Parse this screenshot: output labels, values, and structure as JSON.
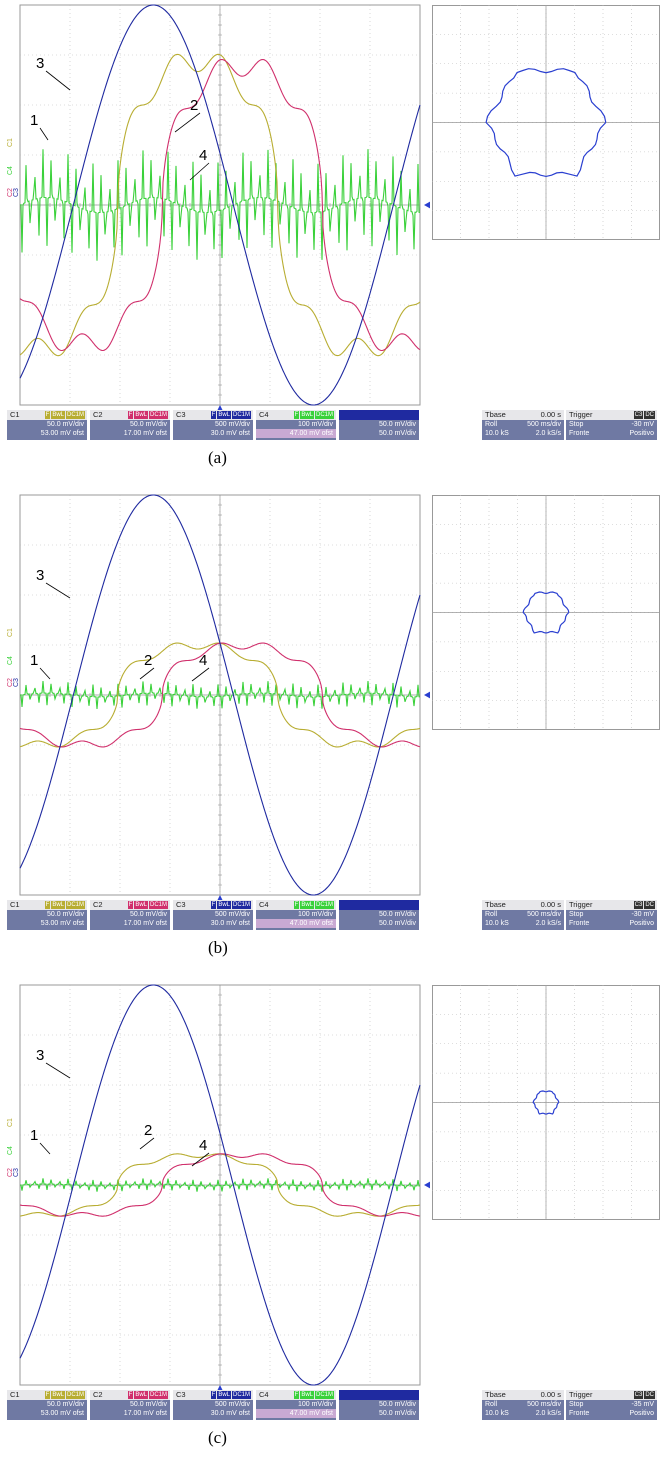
{
  "chart_data": [
    {
      "type": "line",
      "caption": "(a)",
      "markers": {
        "ch1": "C1",
        "ch4": "C4",
        "ch2": "C2",
        "ch3": "C3"
      },
      "series": [
        {
          "name": "1",
          "color": "#b8ad32",
          "amplitude_div": 2.9,
          "shape": "flat-top",
          "phase_deg": 250
        },
        {
          "name": "2",
          "color": "#d0306c",
          "amplitude_div": 2.8,
          "shape": "flat-top",
          "phase_deg": 200
        },
        {
          "name": "3",
          "color": "#1f2aa0",
          "amplitude_div": 4.0,
          "shape": "sine",
          "phase_deg": 300
        },
        {
          "name": "4",
          "color": "#3ad13a",
          "amplitude_div": 1.0,
          "shape": "spiky",
          "phase_deg": 0
        }
      ],
      "grid": true,
      "xy_plot": {
        "color": "#2a3fd0",
        "shape": "hexagon",
        "radius_div": 2.1
      },
      "channels": [
        {
          "name": "C1",
          "tags": [
            "F",
            "BwL",
            "DC1M"
          ],
          "line1": "50.0 mV/div",
          "line2": "53.00 mV ofst",
          "color": "#b8ad32"
        },
        {
          "name": "C2",
          "tags": [
            "F",
            "BwL",
            "DC1M"
          ],
          "line1": "50.0 mV/div",
          "line2": "17.00 mV ofst",
          "color": "#d0306c"
        },
        {
          "name": "C3",
          "tags": [
            "F",
            "BwL",
            "DC1M"
          ],
          "line1": "500 mV/div",
          "line2": "30.0 mV ofst",
          "color": "#1f2aa0"
        },
        {
          "name": "C4",
          "tags": [
            "F",
            "BwL",
            "DC1M"
          ],
          "line1": "100 mV/div",
          "line2": "47.00 mV ofst",
          "color": "#3ad13a"
        },
        {
          "name": "",
          "tags": [],
          "line1": "50.0 mV/div",
          "line2": "50.0 mV/div",
          "color": "#2a3fd0"
        }
      ],
      "timebase": {
        "label": "Tbase",
        "value": "0.00 s",
        "r1a": "Roll",
        "r1b": "500 ms/div",
        "r2a": "10.0 kS",
        "r2b": "2.0 kS/s"
      },
      "trigger": {
        "label": "Trigger",
        "tags": [
          "C3",
          "DC"
        ],
        "r1a": "Stop",
        "r1b": "-30 mV",
        "r2a": "Fronte",
        "r2b": "Positivo"
      }
    },
    {
      "type": "line",
      "caption": "(b)",
      "markers": {
        "ch1": "C1",
        "ch4": "C4",
        "ch2": "C2",
        "ch3": "C3"
      },
      "series": [
        {
          "name": "1",
          "color": "#b8ad32",
          "amplitude_div": 1.0,
          "shape": "flat-top",
          "phase_deg": 250
        },
        {
          "name": "2",
          "color": "#d0306c",
          "amplitude_div": 1.0,
          "shape": "flat-top",
          "phase_deg": 200
        },
        {
          "name": "3",
          "color": "#1f2aa0",
          "amplitude_div": 4.0,
          "shape": "sine",
          "phase_deg": 300
        },
        {
          "name": "4",
          "color": "#3ad13a",
          "amplitude_div": 0.25,
          "shape": "spiky",
          "phase_deg": 0
        }
      ],
      "grid": true,
      "xy_plot": {
        "color": "#2a3fd0",
        "shape": "hexagon",
        "radius_div": 0.8
      },
      "channels": [
        {
          "name": "C1",
          "tags": [
            "F",
            "BwL",
            "DC1M"
          ],
          "line1": "50.0 mV/div",
          "line2": "53.00 mV ofst",
          "color": "#b8ad32"
        },
        {
          "name": "C2",
          "tags": [
            "F",
            "BwL",
            "DC1M"
          ],
          "line1": "50.0 mV/div",
          "line2": "17.00 mV ofst",
          "color": "#d0306c"
        },
        {
          "name": "C3",
          "tags": [
            "F",
            "BwL",
            "DC1M"
          ],
          "line1": "500 mV/div",
          "line2": "30.0 mV ofst",
          "color": "#1f2aa0"
        },
        {
          "name": "C4",
          "tags": [
            "F",
            "BwL",
            "DC1M"
          ],
          "line1": "100 mV/div",
          "line2": "47.00 mV ofst",
          "color": "#3ad13a"
        },
        {
          "name": "",
          "tags": [],
          "line1": "50.0 mV/div",
          "line2": "50.0 mV/div",
          "color": "#2a3fd0"
        }
      ],
      "timebase": {
        "label": "Tbase",
        "value": "0.00 s",
        "r1a": "Roll",
        "r1b": "500 ms/div",
        "r2a": "10.0 kS",
        "r2b": "2.0 kS/s"
      },
      "trigger": {
        "label": "Trigger",
        "tags": [
          "C3",
          "DC"
        ],
        "r1a": "Stop",
        "r1b": "-30 mV",
        "r2a": "Fronte",
        "r2b": "Positivo"
      }
    },
    {
      "type": "line",
      "caption": "(c)",
      "markers": {
        "ch1": "C1",
        "ch4": "C4",
        "ch2": "C2",
        "ch3": "C3"
      },
      "series": [
        {
          "name": "1",
          "color": "#b8ad32",
          "amplitude_div": 0.6,
          "shape": "flat-top",
          "phase_deg": 250
        },
        {
          "name": "2",
          "color": "#d0306c",
          "amplitude_div": 0.6,
          "shape": "flat-top",
          "phase_deg": 200
        },
        {
          "name": "3",
          "color": "#1f2aa0",
          "amplitude_div": 4.0,
          "shape": "sine",
          "phase_deg": 300
        },
        {
          "name": "4",
          "color": "#3ad13a",
          "amplitude_div": 0.12,
          "shape": "spiky",
          "phase_deg": 0
        }
      ],
      "grid": true,
      "xy_plot": {
        "color": "#2a3fd0",
        "shape": "hexagon",
        "radius_div": 0.45
      },
      "channels": [
        {
          "name": "C1",
          "tags": [
            "F",
            "BwL",
            "DC1M"
          ],
          "line1": "50.0 mV/div",
          "line2": "53.00 mV ofst",
          "color": "#b8ad32"
        },
        {
          "name": "C2",
          "tags": [
            "F",
            "BwL",
            "DC1M"
          ],
          "line1": "50.0 mV/div",
          "line2": "17.00 mV ofst",
          "color": "#d0306c"
        },
        {
          "name": "C3",
          "tags": [
            "F",
            "BwL",
            "DC1M"
          ],
          "line1": "500 mV/div",
          "line2": "30.0 mV ofst",
          "color": "#1f2aa0"
        },
        {
          "name": "C4",
          "tags": [
            "F",
            "BwL",
            "DC1M"
          ],
          "line1": "100 mV/div",
          "line2": "47.00 mV ofst",
          "color": "#3ad13a"
        },
        {
          "name": "",
          "tags": [],
          "line1": "50.0 mV/div",
          "line2": "50.0 mV/div",
          "color": "#2a3fd0"
        }
      ],
      "timebase": {
        "label": "Tbase",
        "value": "0.00 s",
        "r1a": "Roll",
        "r1b": "500 ms/div",
        "r2a": "10.0 kS",
        "r2b": "2.0 kS/s"
      },
      "trigger": {
        "label": "Trigger",
        "tags": [
          "C3",
          "DC"
        ],
        "r1a": "Stop",
        "r1b": "-35 mV",
        "r2a": "Fronte",
        "r2b": "Positivo"
      }
    }
  ]
}
